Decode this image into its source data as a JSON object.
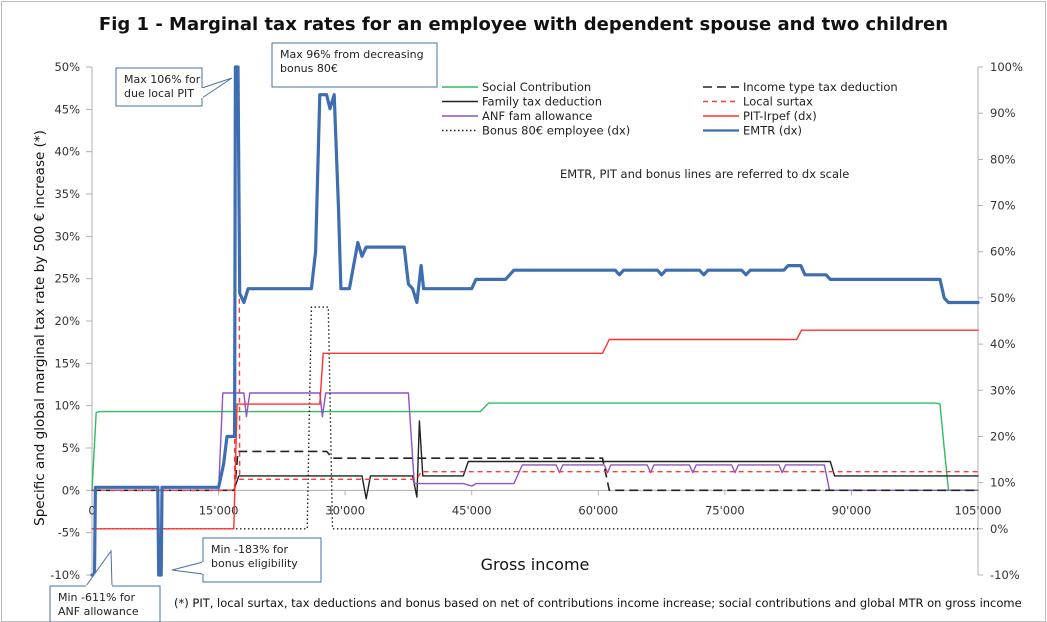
{
  "chart_data": {
    "type": "line",
    "title": "Fig 1 - Marginal tax rates for an employee with dependent spouse and two children",
    "xlabel": "Gross income",
    "ylabel": "Specific and global marginal tax rate by 500 € increase (*)",
    "y2label": "",
    "xlim": [
      0,
      105000
    ],
    "ylim": [
      -10,
      50
    ],
    "y2lim": [
      -10,
      100
    ],
    "x_ticks": [
      0,
      15000,
      30000,
      45000,
      60000,
      75000,
      90000,
      105000
    ],
    "x_tick_labels": [
      "0",
      "15'000",
      "30'000",
      "45'000",
      "60'000",
      "75'000",
      "90'000",
      "105'000"
    ],
    "y_ticks": [
      -10,
      -5,
      0,
      5,
      10,
      15,
      20,
      25,
      30,
      35,
      40,
      45,
      50
    ],
    "y_tick_labels": [
      "-10%",
      "-5%",
      "0%",
      "5%",
      "10%",
      "15%",
      "20%",
      "25%",
      "30%",
      "35%",
      "40%",
      "45%",
      "50%"
    ],
    "y2_ticks": [
      -10,
      0,
      10,
      20,
      30,
      40,
      50,
      60,
      70,
      80,
      90,
      100
    ],
    "y2_tick_labels": [
      "-10%",
      "0%",
      "10%",
      "20%",
      "30%",
      "40%",
      "50%",
      "60%",
      "70%",
      "80%",
      "90%",
      "100%"
    ],
    "grid": false,
    "legend_position": "top-right",
    "annotation_scale": "EMTR, PIT and bonus lines are referred to dx scale",
    "footnote": "(*)  PIT, local surtax, tax deductions and bonus based on net of contributions income increase; social contributions and global MTR on gross income",
    "callouts": [
      {
        "name": "max-local-pit",
        "lines": [
          "Max 106% for",
          "due local PIT"
        ]
      },
      {
        "name": "max-bonus",
        "lines": [
          "Max 96% from decreasing",
          "bonus 80€"
        ]
      },
      {
        "name": "min-bonus-eligibility",
        "lines": [
          "Min -183% for",
          "bonus eligibility"
        ]
      },
      {
        "name": "min-anf",
        "lines": [
          "Min -611% for",
          "ANF allowance"
        ]
      }
    ],
    "series": [
      {
        "name": "Social Contribution",
        "axis": "left",
        "color": "#2ebd5f",
        "dash": "",
        "width": 1.4,
        "points": [
          [
            0,
            0
          ],
          [
            500,
            9.2
          ],
          [
            1000,
            9.3
          ],
          [
            46000,
            9.3
          ],
          [
            47000,
            10.3
          ],
          [
            100000,
            10.3
          ],
          [
            100500,
            10.2
          ],
          [
            101000,
            5
          ],
          [
            101500,
            0
          ],
          [
            105000,
            0
          ]
        ]
      },
      {
        "name": "Family tax deduction",
        "axis": "left",
        "color": "#222222",
        "dash": "",
        "width": 1.4,
        "points": [
          [
            0,
            0
          ],
          [
            16800,
            0
          ],
          [
            17400,
            1.7
          ],
          [
            32000,
            1.7
          ],
          [
            32500,
            -1
          ],
          [
            33000,
            1.7
          ],
          [
            38000,
            1.7
          ],
          [
            38500,
            -0.8
          ],
          [
            38800,
            8.2
          ],
          [
            39200,
            1.7
          ],
          [
            44000,
            1.7
          ],
          [
            44600,
            3.4
          ],
          [
            87500,
            3.4
          ],
          [
            88000,
            1.7
          ],
          [
            105000,
            1.7
          ]
        ]
      },
      {
        "name": "ANF fam allowance",
        "axis": "left",
        "color": "#8e54c6",
        "dash": "",
        "width": 1.4,
        "points": [
          [
            0,
            0
          ],
          [
            15000,
            0
          ],
          [
            15500,
            11.5
          ],
          [
            18000,
            11.5
          ],
          [
            18300,
            8.7
          ],
          [
            18700,
            11.5
          ],
          [
            27000,
            11.5
          ],
          [
            27300,
            8.7
          ],
          [
            27700,
            11.5
          ],
          [
            37500,
            11.5
          ],
          [
            38200,
            0.8
          ],
          [
            44000,
            0.8
          ],
          [
            45000,
            0.5
          ],
          [
            45500,
            0.8
          ],
          [
            50000,
            0.8
          ],
          [
            51000,
            3
          ],
          [
            55000,
            3
          ],
          [
            55400,
            2.1
          ],
          [
            55800,
            3
          ],
          [
            60700,
            3
          ],
          [
            61100,
            2.1
          ],
          [
            61500,
            3
          ],
          [
            65800,
            3
          ],
          [
            66200,
            2.1
          ],
          [
            66600,
            3
          ],
          [
            70800,
            3
          ],
          [
            71200,
            2.1
          ],
          [
            71600,
            3
          ],
          [
            75800,
            3
          ],
          [
            76200,
            2.1
          ],
          [
            76600,
            3
          ],
          [
            81400,
            3
          ],
          [
            81800,
            2.1
          ],
          [
            82200,
            3
          ],
          [
            86800,
            3
          ],
          [
            87400,
            0
          ],
          [
            105000,
            0
          ]
        ]
      },
      {
        "name": "Bonus 80€ employee (dx)",
        "axis": "right",
        "color": "#222222",
        "dash": "1.5,2.5",
        "width": 1.4,
        "points": [
          [
            0,
            0
          ],
          [
            25500,
            0
          ],
          [
            26000,
            48
          ],
          [
            26300,
            48
          ],
          [
            28000,
            48
          ],
          [
            28500,
            0
          ],
          [
            105000,
            0
          ]
        ]
      },
      {
        "name": "Income type tax deduction",
        "axis": "left",
        "color": "#222222",
        "dash": "9,5",
        "width": 1.6,
        "points": [
          [
            0,
            0
          ],
          [
            16900,
            0
          ],
          [
            17300,
            4.6
          ],
          [
            27800,
            4.6
          ],
          [
            28500,
            3.8
          ],
          [
            60500,
            3.8
          ],
          [
            61300,
            0
          ],
          [
            105000,
            0
          ]
        ]
      },
      {
        "name": "Local surtax",
        "axis": "left",
        "color": "#ff3b3b",
        "dash": "5,4",
        "width": 1.4,
        "points": [
          [
            0,
            0
          ],
          [
            16900,
            0
          ],
          [
            17000,
            50
          ],
          [
            17400,
            50
          ],
          [
            17500,
            1.3
          ],
          [
            38500,
            1.3
          ],
          [
            39000,
            2.2
          ],
          [
            39300,
            2.2
          ],
          [
            105000,
            2.2
          ]
        ]
      },
      {
        "name": "PIT-Irpef (dx)",
        "axis": "right",
        "color": "#ff3030",
        "dash": "",
        "width": 1.4,
        "points": [
          [
            0,
            0
          ],
          [
            16800,
            0
          ],
          [
            17200,
            27
          ],
          [
            27000,
            27
          ],
          [
            27400,
            38
          ],
          [
            60500,
            38
          ],
          [
            61300,
            41
          ],
          [
            83500,
            41
          ],
          [
            84100,
            43
          ],
          [
            105000,
            43
          ]
        ]
      },
      {
        "name": "EMTR (dx)",
        "axis": "right",
        "color": "#3e6db2",
        "dash": "",
        "width": 3.2,
        "points": [
          [
            0,
            -10
          ],
          [
            300,
            -10
          ],
          [
            400,
            9
          ],
          [
            7800,
            9
          ],
          [
            7900,
            -10
          ],
          [
            8200,
            -10
          ],
          [
            8300,
            9
          ],
          [
            15000,
            9
          ],
          [
            15600,
            14
          ],
          [
            16000,
            20
          ],
          [
            16500,
            20
          ],
          [
            16900,
            20
          ],
          [
            17000,
            100
          ],
          [
            17300,
            100
          ],
          [
            17500,
            51
          ],
          [
            18000,
            49
          ],
          [
            18500,
            52
          ],
          [
            26000,
            52
          ],
          [
            26500,
            60
          ],
          [
            27000,
            94
          ],
          [
            27800,
            94
          ],
          [
            28200,
            91
          ],
          [
            28700,
            94
          ],
          [
            29200,
            70
          ],
          [
            29500,
            52
          ],
          [
            30500,
            52
          ],
          [
            31000,
            57
          ],
          [
            31500,
            62
          ],
          [
            32000,
            59
          ],
          [
            32500,
            61
          ],
          [
            37000,
            61
          ],
          [
            37500,
            53
          ],
          [
            38000,
            52
          ],
          [
            38500,
            49
          ],
          [
            39000,
            57
          ],
          [
            39300,
            52
          ],
          [
            45000,
            52
          ],
          [
            45500,
            54
          ],
          [
            49000,
            54
          ],
          [
            50000,
            56
          ],
          [
            62000,
            56
          ],
          [
            62500,
            55
          ],
          [
            63000,
            56
          ],
          [
            67000,
            56
          ],
          [
            67500,
            55
          ],
          [
            68000,
            56
          ],
          [
            72000,
            56
          ],
          [
            72500,
            55
          ],
          [
            73000,
            56
          ],
          [
            77000,
            56
          ],
          [
            77500,
            55
          ],
          [
            78000,
            56
          ],
          [
            82000,
            56
          ],
          [
            82500,
            57
          ],
          [
            84000,
            57
          ],
          [
            84500,
            55
          ],
          [
            87000,
            55
          ],
          [
            87500,
            54
          ],
          [
            100500,
            54
          ],
          [
            101000,
            50
          ],
          [
            101500,
            49
          ],
          [
            105000,
            49
          ]
        ]
      }
    ]
  }
}
